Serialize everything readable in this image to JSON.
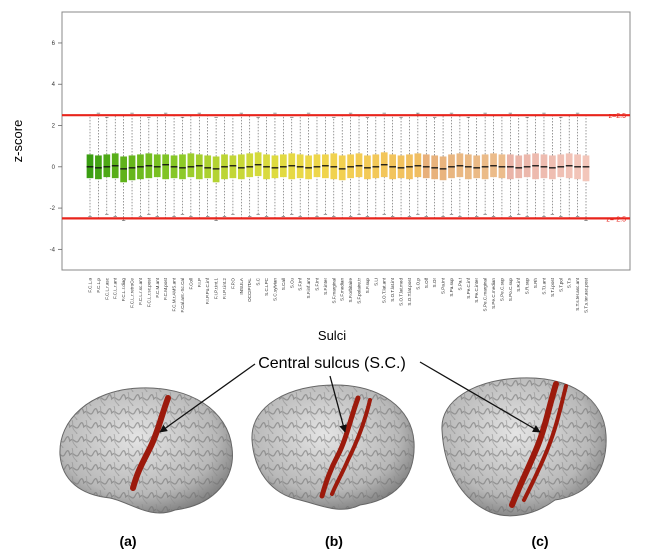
{
  "chart_data": {
    "type": "boxplot",
    "xlabel": "Sulci",
    "ylabel": "z-score",
    "ylim": [
      -5,
      7.5
    ],
    "yticks": [
      -4,
      -2,
      0,
      2,
      4,
      6
    ],
    "categories": [
      "F.C.L.a",
      "F.C.L.p",
      "F.C.L.r.asc",
      "F.C.L.r.ant",
      "F.C.L.r.diag",
      "F.C.L.r.retroCe",
      "F.C.L.r.sc.ant",
      "F.C.L.r.sc.post",
      "F.C.M.ant",
      "F.C.M.post",
      "F.C.M.r.AMS.ant",
      "F.Cal.ant.-Sc.Cal",
      "F.Coll",
      "F.I.P",
      "F.I.P.Po.C.inf",
      "F.I.P.r.int.1",
      "F.I.P.r.int.2",
      "F.P.O",
      "INSULA",
      "OCCIPITAL",
      "S.C",
      "S.C.LPC",
      "S.C.sylvian",
      "S.Call",
      "S.Cu",
      "S.F.inf",
      "S.F.inf.ant",
      "S.F.int",
      "S.F.inter",
      "S.F.marginal",
      "S.F.median",
      "S.F.orbitaire",
      "S.F.polaire.tr",
      "S.F.sup",
      "S.Li",
      "S.O.T.lat.ant",
      "S.O.T.lat.int",
      "S.O.T.lat.med",
      "S.O.T.lat.post",
      "S.O.p",
      "S.Olf",
      "S.Or",
      "S.Pa.int",
      "S.Pa.sup",
      "S.Pa.t",
      "S.Pe.C.inf",
      "S.Pe.C.inter",
      "S.Pe.C.marginal",
      "S.Pe.C.median",
      "S.Pe.C.sup",
      "S.Po.C.sup",
      "S.R.inf",
      "S.R.sup",
      "S.Rh",
      "S.T.i.ant",
      "S.T.i.post",
      "S.T.pol",
      "S.T.s",
      "S.T.s.ter.asc.ant",
      "S.T.s.ter.asc.post"
    ],
    "whisker_low": [
      -2.4,
      -2.5,
      -2.3,
      -2.4,
      -2.6,
      -2.5,
      -2.4,
      -2.3,
      -2.4,
      -2.5,
      -2.4,
      -2.3,
      -2.4,
      -2.5,
      -2.4,
      -2.6,
      -2.4,
      -2.3,
      -2.5,
      -2.4,
      -2.3,
      -2.4,
      -2.5,
      -2.4,
      -2.3,
      -2.4,
      -2.5,
      -2.4,
      -2.3,
      -2.4,
      -2.5,
      -2.4,
      -2.3,
      -2.4,
      -2.5,
      -2.3,
      -2.4,
      -2.5,
      -2.4,
      -2.3,
      -2.4,
      -2.5,
      -2.4,
      -2.3,
      -2.4,
      -2.5,
      -2.4,
      -2.3,
      -2.4,
      -2.5,
      -2.4,
      -2.3,
      -2.4,
      -2.5,
      -2.4,
      -2.3,
      -2.4,
      -2.5,
      -2.4,
      -2.6
    ],
    "q1": [
      -0.55,
      -0.6,
      -0.5,
      -0.55,
      -0.75,
      -0.65,
      -0.6,
      -0.55,
      -0.5,
      -0.6,
      -0.55,
      -0.6,
      -0.5,
      -0.6,
      -0.55,
      -0.75,
      -0.6,
      -0.55,
      -0.6,
      -0.5,
      -0.45,
      -0.6,
      -0.55,
      -0.5,
      -0.6,
      -0.55,
      -0.6,
      -0.5,
      -0.55,
      -0.6,
      -0.65,
      -0.55,
      -0.5,
      -0.6,
      -0.55,
      -0.5,
      -0.6,
      -0.55,
      -0.6,
      -0.5,
      -0.55,
      -0.6,
      -0.65,
      -0.55,
      -0.5,
      -0.6,
      -0.55,
      -0.6,
      -0.5,
      -0.55,
      -0.6,
      -0.55,
      -0.5,
      -0.6,
      -0.55,
      -0.6,
      -0.5,
      -0.55,
      -0.6,
      -0.7
    ],
    "median": [
      0,
      -0.05,
      0,
      0.05,
      -0.1,
      -0.05,
      0,
      0.05,
      0,
      0.1,
      0,
      -0.05,
      0,
      0.05,
      -0.05,
      -0.1,
      0,
      0.05,
      -0.05,
      0,
      0.1,
      0,
      -0.05,
      0,
      0.05,
      0,
      -0.05,
      0,
      0.05,
      0,
      -0.1,
      0,
      0.05,
      -0.05,
      0,
      0.1,
      0,
      -0.05,
      0,
      0.05,
      0,
      -0.05,
      -0.1,
      0,
      0.05,
      0,
      -0.05,
      0,
      0.05,
      0,
      0,
      -0.05,
      0,
      0.05,
      0,
      -0.05,
      0,
      0.05,
      0,
      0
    ],
    "q3": [
      0.6,
      0.55,
      0.6,
      0.65,
      0.5,
      0.55,
      0.6,
      0.65,
      0.6,
      0.6,
      0.55,
      0.6,
      0.65,
      0.6,
      0.55,
      0.5,
      0.6,
      0.55,
      0.6,
      0.65,
      0.7,
      0.6,
      0.55,
      0.6,
      0.65,
      0.6,
      0.55,
      0.6,
      0.6,
      0.65,
      0.55,
      0.6,
      0.65,
      0.55,
      0.6,
      0.7,
      0.6,
      0.55,
      0.6,
      0.65,
      0.6,
      0.55,
      0.5,
      0.6,
      0.65,
      0.6,
      0.55,
      0.6,
      0.65,
      0.6,
      0.6,
      0.55,
      0.6,
      0.65,
      0.6,
      0.55,
      0.6,
      0.65,
      0.6,
      0.55
    ],
    "whisker_high": [
      2.5,
      2.6,
      2.4,
      2.5,
      2.5,
      2.6,
      2.5,
      2.4,
      2.5,
      2.6,
      2.5,
      2.4,
      2.5,
      2.6,
      2.5,
      2.4,
      2.5,
      2.5,
      2.6,
      2.5,
      2.4,
      2.5,
      2.6,
      2.5,
      2.4,
      2.5,
      2.6,
      2.5,
      2.5,
      2.4,
      2.5,
      2.6,
      2.5,
      2.4,
      2.5,
      2.6,
      2.5,
      2.4,
      2.5,
      2.6,
      2.5,
      2.4,
      2.5,
      2.6,
      2.5,
      2.4,
      2.5,
      2.6,
      2.5,
      2.5,
      2.6,
      2.5,
      2.4,
      2.5,
      2.6,
      2.5,
      2.4,
      2.5,
      2.6,
      2.5
    ],
    "colors": [
      "#3a9e12",
      "#44a414",
      "#4ea916",
      "#58ae18",
      "#5fb21a",
      "#66b61c",
      "#6dba1e",
      "#73bd20",
      "#79c022",
      "#80c424",
      "#86c726",
      "#8dca28",
      "#9ccd2c",
      "#a4cf2e",
      "#acd130",
      "#b4d332",
      "#bcd534",
      "#c2d636",
      "#c8d838",
      "#cfd93a",
      "#d4da3c",
      "#d9da3e",
      "#dedb40",
      "#e2da42",
      "#e6d944",
      "#e9d846",
      "#ecd748",
      "#eed64a",
      "#f0d44c",
      "#f1d24e",
      "#f2d050",
      "#f3ce52",
      "#f3cc54",
      "#f3ca56",
      "#f3c858",
      "#f3c65a",
      "#f2c45c",
      "#f2c25e",
      "#f1c060",
      "#f0be62",
      "#e8b07a",
      "#e8b27c",
      "#e9b47e",
      "#e9b680",
      "#eab882",
      "#eab984",
      "#ebba86",
      "#ebbb88",
      "#ecbc8a",
      "#ecbd8c",
      "#eab4a8",
      "#ebb6aa",
      "#ecb8ac",
      "#edbaae",
      "#eebcb0",
      "#efbeb2",
      "#f0c0b4",
      "#f1c2b6",
      "#f2c4b8",
      "#f3c6ba"
    ],
    "thresholds": [
      {
        "value": 2.5,
        "label": "z=2.5"
      },
      {
        "value": -2.5,
        "label": "z=-2.5"
      }
    ],
    "threshold_color": "#e8241c"
  },
  "figure": {
    "annotation": "Central sulcus (S.C.)",
    "panels": [
      "(a)",
      "(b)",
      "(c)"
    ]
  }
}
